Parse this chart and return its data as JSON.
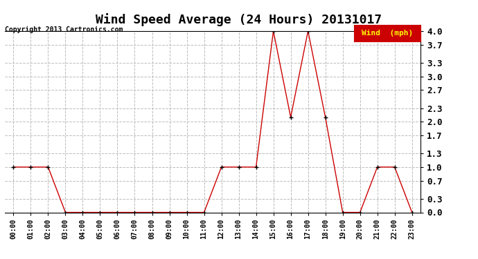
{
  "title": "Wind Speed Average (24 Hours) 20131017",
  "copyright": "Copyright 2013 Cartronics.com",
  "hours": [
    "00:00",
    "01:00",
    "02:00",
    "03:00",
    "04:00",
    "05:00",
    "06:00",
    "07:00",
    "08:00",
    "09:00",
    "10:00",
    "11:00",
    "12:00",
    "13:00",
    "14:00",
    "15:00",
    "16:00",
    "17:00",
    "18:00",
    "19:00",
    "20:00",
    "21:00",
    "22:00",
    "23:00"
  ],
  "values": [
    1.0,
    1.0,
    1.0,
    0.0,
    0.0,
    0.0,
    0.0,
    0.0,
    0.0,
    0.0,
    0.0,
    0.0,
    1.0,
    1.0,
    1.0,
    4.0,
    2.1,
    4.0,
    2.1,
    0.0,
    0.0,
    1.0,
    1.0,
    0.0
  ],
  "line_color": "#cc0000",
  "marker_color": "#000000",
  "background_color": "#ffffff",
  "grid_color": "#bbbbbb",
  "ylim": [
    0.0,
    4.0
  ],
  "yticks": [
    0.0,
    0.3,
    0.7,
    1.0,
    1.3,
    1.7,
    2.0,
    2.3,
    2.7,
    3.0,
    3.3,
    3.7,
    4.0
  ],
  "title_fontsize": 13,
  "legend_label": "Wind  (mph)",
  "legend_bg": "#cc0000",
  "legend_text_color": "#ffff00"
}
